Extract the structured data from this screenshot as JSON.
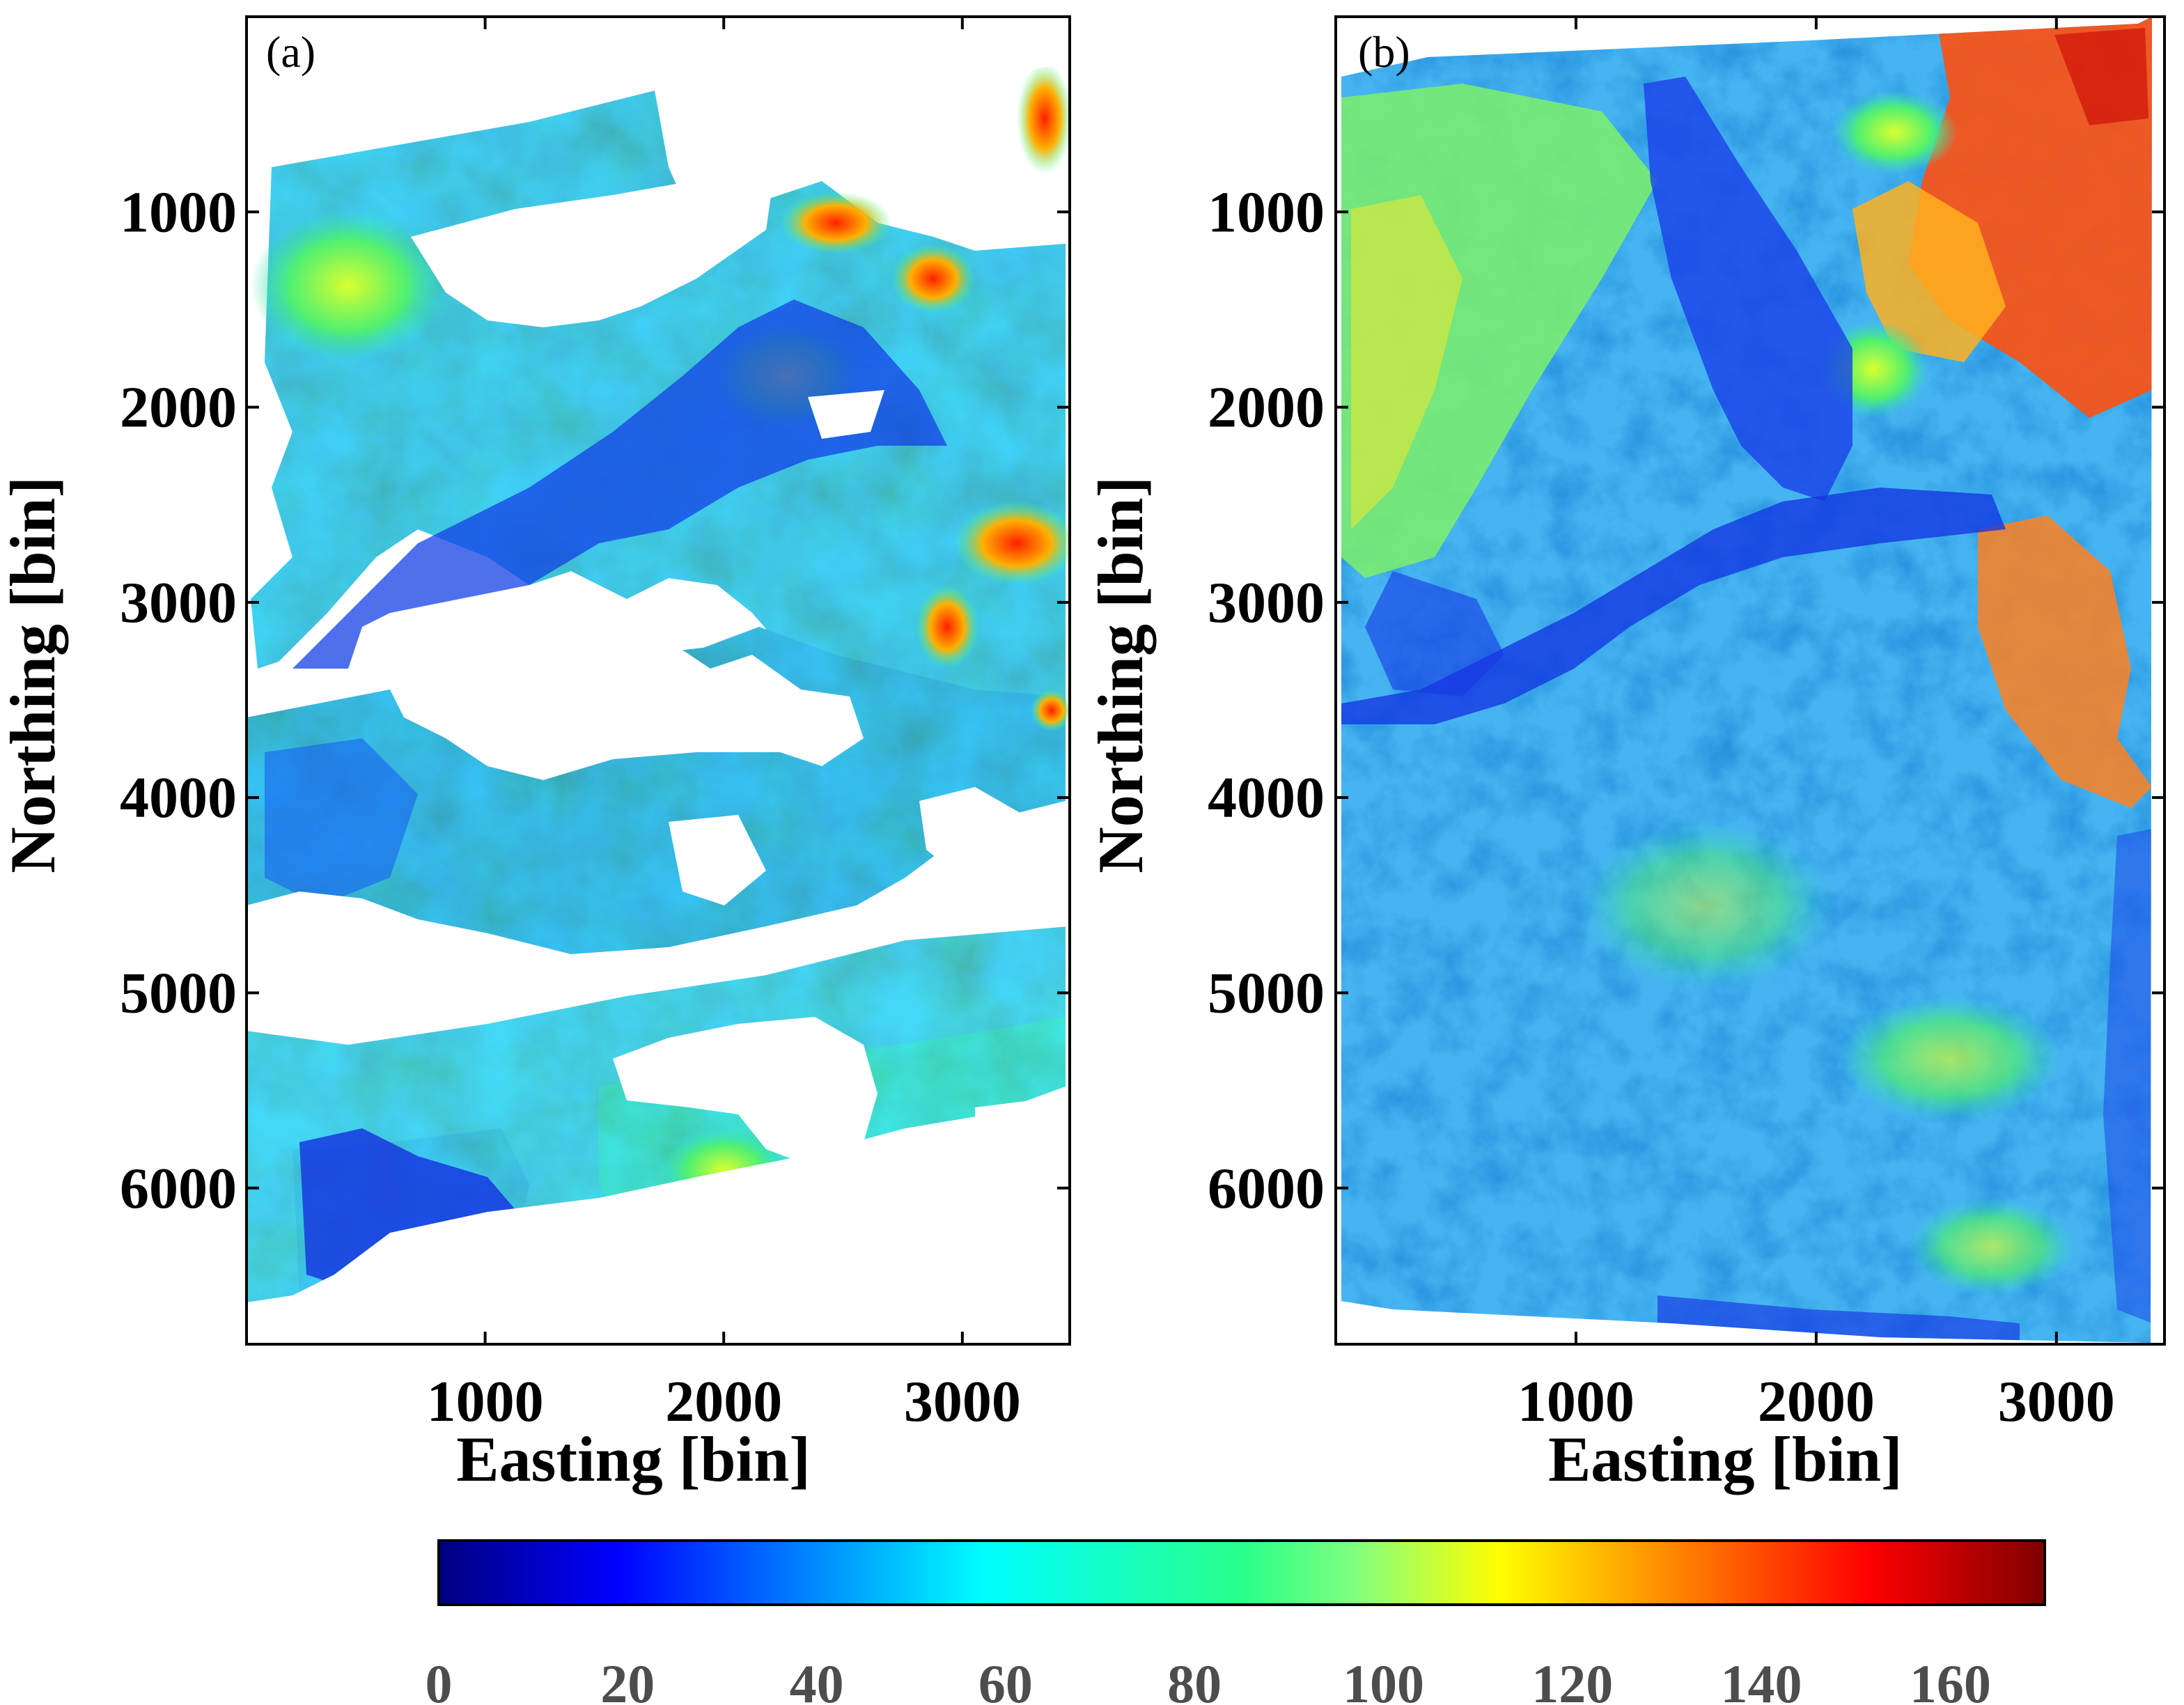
{
  "chart_data": {
    "type": "heatmap",
    "colormap": "jet",
    "colorbar": {
      "range": [
        0,
        170
      ],
      "ticks": [
        0,
        20,
        40,
        60,
        80,
        100,
        120,
        140,
        160
      ],
      "tick_labels": [
        "0",
        "20",
        "40",
        "60",
        "80",
        "100",
        "120",
        "140",
        "160"
      ]
    },
    "panels": [
      {
        "tag": "(a)",
        "xlabel": "Easting [bin]",
        "ylabel": "Northing [bin]",
        "xlim": [
          0,
          3450
        ],
        "ylim": [
          6800,
          0
        ],
        "xticks": [
          1000,
          2000,
          3000
        ],
        "xtick_labels": [
          "1000",
          "2000",
          "3000"
        ],
        "yticks": [
          1000,
          2000,
          3000,
          4000,
          5000,
          6000
        ],
        "ytick_labels": [
          "1000",
          "2000",
          "3000",
          "4000",
          "5000",
          "6000"
        ],
        "coverage": "partial"
      },
      {
        "tag": "(b)",
        "xlabel": "Easting [bin]",
        "ylabel": "Northing [bin]",
        "xlim": [
          0,
          3450
        ],
        "ylim": [
          6800,
          0
        ],
        "xticks": [
          1000,
          2000,
          3000
        ],
        "xtick_labels": [
          "1000",
          "2000",
          "3000"
        ],
        "yticks": [
          1000,
          2000,
          3000,
          4000,
          5000,
          6000
        ],
        "ytick_labels": [
          "1000",
          "2000",
          "3000",
          "4000",
          "5000",
          "6000"
        ],
        "coverage": "full"
      }
    ]
  }
}
